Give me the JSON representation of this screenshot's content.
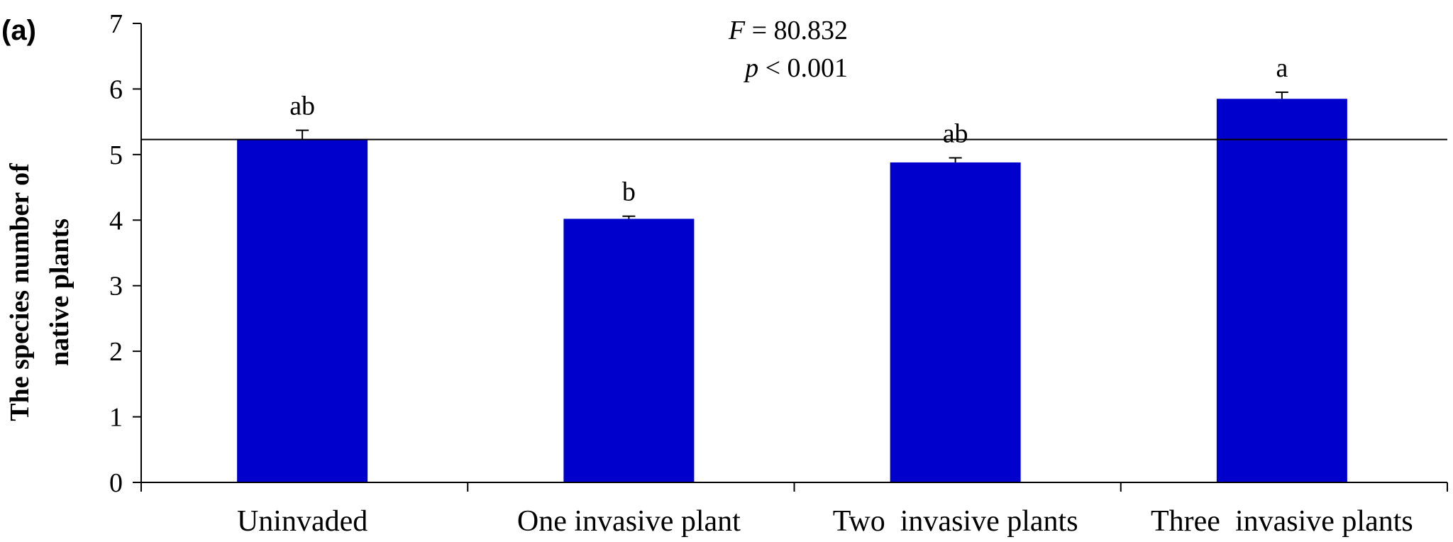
{
  "panel_label": "(a)",
  "chart_data": {
    "type": "bar",
    "categories": [
      "Uninvaded",
      "One invasive plant",
      "Two  invasive plants",
      "Three  invasive plants"
    ],
    "values": [
      5.23,
      4.02,
      4.88,
      5.85
    ],
    "errors": [
      0.14,
      0.04,
      0.07,
      0.1
    ],
    "significance_letters": [
      "ab",
      "b",
      "ab",
      "a"
    ],
    "ylabel_lines": [
      "The species number of",
      "native plants"
    ],
    "xlabel": "",
    "ylim": [
      0,
      7
    ],
    "yticks": [
      0,
      1,
      2,
      3,
      4,
      5,
      6,
      7
    ],
    "reference_line": 5.23,
    "bar_color": "#0000CC",
    "grid": false,
    "stats": {
      "f_symbol": "F",
      "f_text": " = 80.832",
      "p_symbol": "p",
      "p_text": " < 0.001"
    }
  }
}
